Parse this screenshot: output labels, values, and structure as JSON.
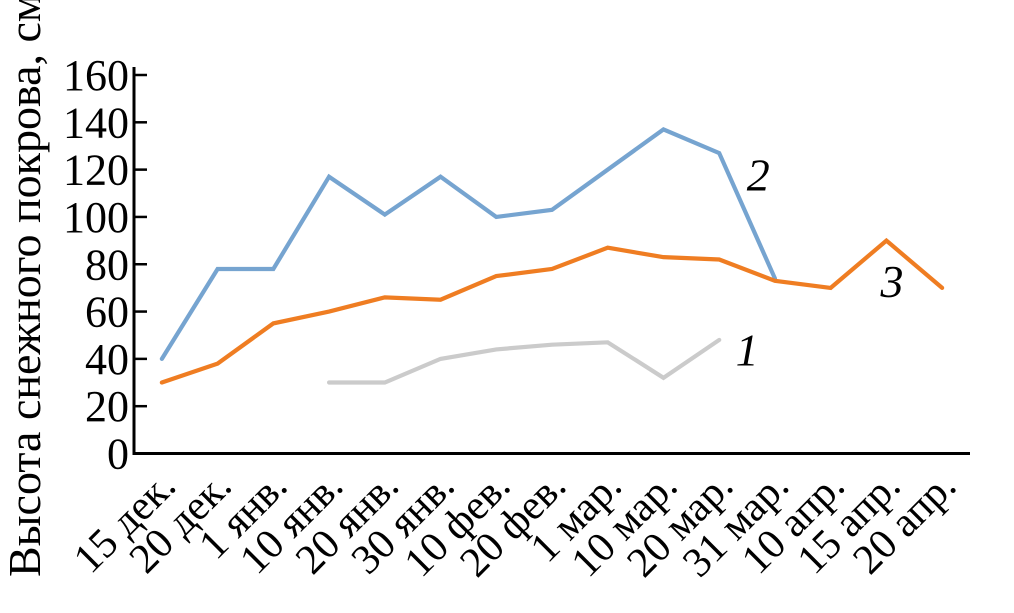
{
  "chart_data": {
    "type": "line",
    "title": "",
    "xlabel": "",
    "ylabel": "Высота снежного покрова, см",
    "ylim": [
      0,
      160
    ],
    "yticks": [
      0,
      20,
      40,
      60,
      80,
      100,
      120,
      140,
      160
    ],
    "grid": false,
    "legend": "inline-numeric-labels",
    "categories": [
      "15 дек.",
      "20 дек.",
      "1 янв.",
      "10 янв.",
      "20 янв.",
      "30 янв.",
      "10 фев.",
      "20 фев.",
      "1 мар.",
      "10 мар.",
      "20 мар.",
      "31 мар.",
      "10 апр.",
      "15 апр.",
      "20 апр."
    ],
    "series": [
      {
        "name": "1",
        "color": "#CBCBCB",
        "start_index": 3,
        "values": [
          30,
          30,
          40,
          44,
          46,
          47,
          32,
          48
        ],
        "label": {
          "text": "1",
          "ci": 10.5,
          "v": 44
        }
      },
      {
        "name": "2",
        "color": "#76A4D0",
        "start_index": 0,
        "values": [
          40,
          78,
          78,
          117,
          101,
          117,
          100,
          103,
          120,
          137,
          127,
          74
        ],
        "label": {
          "text": "2",
          "ci": 10.7,
          "v": 118
        }
      },
      {
        "name": "3",
        "color": "#EF7D22",
        "start_index": 0,
        "values": [
          30,
          38,
          55,
          60,
          66,
          65,
          75,
          78,
          87,
          83,
          82,
          73,
          70,
          90,
          70
        ],
        "label": {
          "text": "3",
          "ci": 13.1,
          "v": 73
        }
      }
    ]
  }
}
